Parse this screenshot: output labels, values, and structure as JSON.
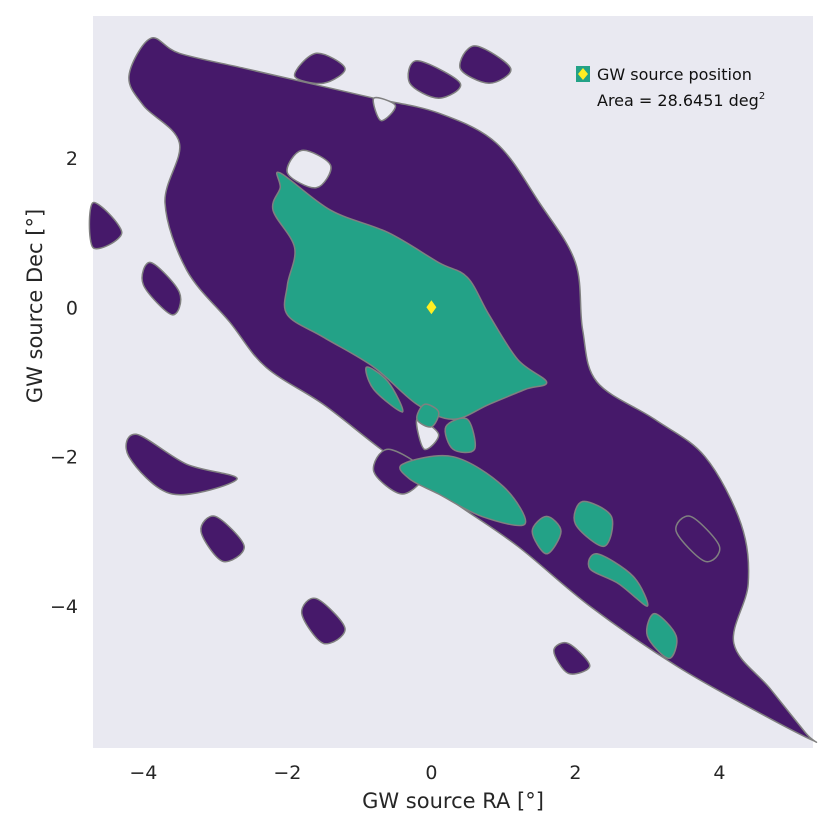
{
  "chart_data": {
    "type": "contour",
    "xlabel": "GW source RA [°]",
    "ylabel": "GW source Dec [°]",
    "xlim": [
      -4.7,
      5.3
    ],
    "ylim": [
      -5.9,
      3.9
    ],
    "xticks": [
      -4,
      -2,
      0,
      2,
      4
    ],
    "yticks": [
      2,
      0,
      -2,
      -4
    ],
    "x_tick_labels": [
      "−4",
      "−2",
      "0",
      "2",
      "4"
    ],
    "y_tick_labels": [
      "2",
      "0",
      "−2",
      "−4"
    ],
    "grid": false,
    "legend_position": "top-right",
    "legend": {
      "label": "GW source position",
      "area_prefix": "Area = 28.6451 deg",
      "area_superscript": "2"
    },
    "source_position": {
      "x": 0.0,
      "y": 0.0
    },
    "colors": {
      "background": "#e9e9f1",
      "outer_contour": "#46196a",
      "inner_contour": "#23a287",
      "contour_edge": "#808080",
      "marker": "#ffee22"
    },
    "outer_region": [
      [
        -3.9,
        3.6
      ],
      [
        -3.5,
        3.4
      ],
      [
        -2.6,
        3.2
      ],
      [
        -1.7,
        3.0
      ],
      [
        -0.8,
        2.8
      ],
      [
        0.1,
        2.6
      ],
      [
        0.9,
        2.2
      ],
      [
        1.5,
        1.4
      ],
      [
        2.0,
        0.6
      ],
      [
        2.1,
        -0.3
      ],
      [
        2.3,
        -1.0
      ],
      [
        3.1,
        -1.5
      ],
      [
        3.8,
        -2.0
      ],
      [
        4.3,
        -2.9
      ],
      [
        4.4,
        -3.7
      ],
      [
        4.2,
        -4.5
      ],
      [
        4.7,
        -5.1
      ],
      [
        5.2,
        -5.7
      ],
      [
        5.3,
        -5.8
      ],
      [
        4.5,
        -5.4
      ],
      [
        3.4,
        -4.8
      ],
      [
        2.2,
        -4.0
      ],
      [
        1.2,
        -3.2
      ],
      [
        0.3,
        -2.6
      ],
      [
        -0.7,
        -1.9
      ],
      [
        -1.5,
        -1.3
      ],
      [
        -2.3,
        -0.8
      ],
      [
        -2.8,
        -0.2
      ],
      [
        -3.4,
        0.5
      ],
      [
        -3.7,
        1.4
      ],
      [
        -3.5,
        2.2
      ],
      [
        -4.0,
        2.7
      ],
      [
        -4.2,
        3.1
      ]
    ],
    "inner_region": [
      [
        -2.1,
        1.8
      ],
      [
        -1.4,
        1.3
      ],
      [
        -0.6,
        1.0
      ],
      [
        0.1,
        0.6
      ],
      [
        0.5,
        0.4
      ],
      [
        0.8,
        -0.1
      ],
      [
        1.2,
        -0.7
      ],
      [
        1.6,
        -1.0
      ],
      [
        1.3,
        -1.1
      ],
      [
        0.8,
        -1.3
      ],
      [
        0.3,
        -1.5
      ],
      [
        -0.2,
        -1.3
      ],
      [
        -0.8,
        -0.8
      ],
      [
        -1.5,
        -0.4
      ],
      [
        -2.0,
        -0.1
      ],
      [
        -2.0,
        0.3
      ],
      [
        -1.9,
        0.8
      ],
      [
        -2.2,
        1.3
      ],
      [
        -2.1,
        1.6
      ]
    ],
    "outer_islands": [
      [
        [
          -1.6,
          3.4
        ],
        [
          -1.2,
          3.2
        ],
        [
          -1.5,
          3.0
        ],
        [
          -1.9,
          3.1
        ]
      ],
      [
        [
          -0.2,
          3.3
        ],
        [
          0.4,
          3.0
        ],
        [
          0.1,
          2.8
        ],
        [
          -0.3,
          3.0
        ]
      ],
      [
        [
          0.6,
          3.5
        ],
        [
          1.1,
          3.2
        ],
        [
          0.8,
          3.0
        ],
        [
          0.4,
          3.2
        ]
      ],
      [
        [
          -3.9,
          0.6
        ],
        [
          -3.5,
          0.2
        ],
        [
          -3.6,
          -0.1
        ],
        [
          -4.0,
          0.3
        ]
      ],
      [
        [
          -4.1,
          -1.7
        ],
        [
          -3.4,
          -2.1
        ],
        [
          -2.7,
          -2.3
        ],
        [
          -3.6,
          -2.5
        ],
        [
          -4.2,
          -2.0
        ]
      ],
      [
        [
          -3.0,
          -2.8
        ],
        [
          -2.6,
          -3.2
        ],
        [
          -2.9,
          -3.4
        ],
        [
          -3.2,
          -3.0
        ]
      ],
      [
        [
          -1.6,
          -3.9
        ],
        [
          -1.2,
          -4.3
        ],
        [
          -1.5,
          -4.5
        ],
        [
          -1.8,
          -4.1
        ]
      ],
      [
        [
          -0.6,
          -1.9
        ],
        [
          -0.1,
          -2.2
        ],
        [
          -0.4,
          -2.5
        ],
        [
          -0.8,
          -2.2
        ]
      ],
      [
        [
          -4.7,
          1.4
        ],
        [
          -4.3,
          1.0
        ],
        [
          -4.7,
          0.8
        ]
      ],
      [
        [
          3.6,
          -2.8
        ],
        [
          4.0,
          -3.2
        ],
        [
          3.8,
          -3.4
        ],
        [
          3.4,
          -3.0
        ]
      ],
      [
        [
          1.9,
          -4.5
        ],
        [
          2.2,
          -4.8
        ],
        [
          1.9,
          -4.9
        ],
        [
          1.7,
          -4.6
        ]
      ]
    ],
    "inner_islands": [
      [
        [
          -0.4,
          -2.1
        ],
        [
          0.3,
          -2.0
        ],
        [
          1.0,
          -2.4
        ],
        [
          1.3,
          -2.9
        ],
        [
          0.7,
          -2.8
        ],
        [
          0.1,
          -2.5
        ],
        [
          -0.3,
          -2.3
        ]
      ],
      [
        [
          2.1,
          -2.6
        ],
        [
          2.5,
          -2.8
        ],
        [
          2.4,
          -3.2
        ],
        [
          2.0,
          -2.9
        ]
      ],
      [
        [
          2.3,
          -3.3
        ],
        [
          2.8,
          -3.6
        ],
        [
          3.0,
          -4.0
        ],
        [
          2.6,
          -3.7
        ],
        [
          2.2,
          -3.5
        ]
      ],
      [
        [
          3.1,
          -4.1
        ],
        [
          3.4,
          -4.4
        ],
        [
          3.3,
          -4.7
        ],
        [
          3.0,
          -4.4
        ]
      ],
      [
        [
          1.6,
          -2.8
        ],
        [
          1.8,
          -3.0
        ],
        [
          1.6,
          -3.3
        ],
        [
          1.4,
          -3.0
        ]
      ],
      [
        [
          -0.9,
          -0.8
        ],
        [
          -0.6,
          -1.0
        ],
        [
          -0.4,
          -1.4
        ],
        [
          -0.8,
          -1.1
        ]
      ],
      [
        [
          0.2,
          -1.6
        ],
        [
          0.5,
          -1.5
        ],
        [
          0.6,
          -1.9
        ],
        [
          0.3,
          -1.9
        ]
      ],
      [
        [
          -0.1,
          -1.3
        ],
        [
          0.1,
          -1.4
        ],
        [
          0.0,
          -1.6
        ],
        [
          -0.2,
          -1.5
        ]
      ]
    ],
    "holes": [
      [
        [
          -1.8,
          2.1
        ],
        [
          -1.4,
          1.9
        ],
        [
          -1.6,
          1.6
        ],
        [
          -2.0,
          1.8
        ]
      ],
      [
        [
          -0.8,
          2.8
        ],
        [
          -0.5,
          2.7
        ],
        [
          -0.7,
          2.5
        ]
      ],
      [
        [
          -0.2,
          -1.5
        ],
        [
          0.1,
          -1.7
        ],
        [
          -0.1,
          -1.9
        ]
      ]
    ]
  }
}
